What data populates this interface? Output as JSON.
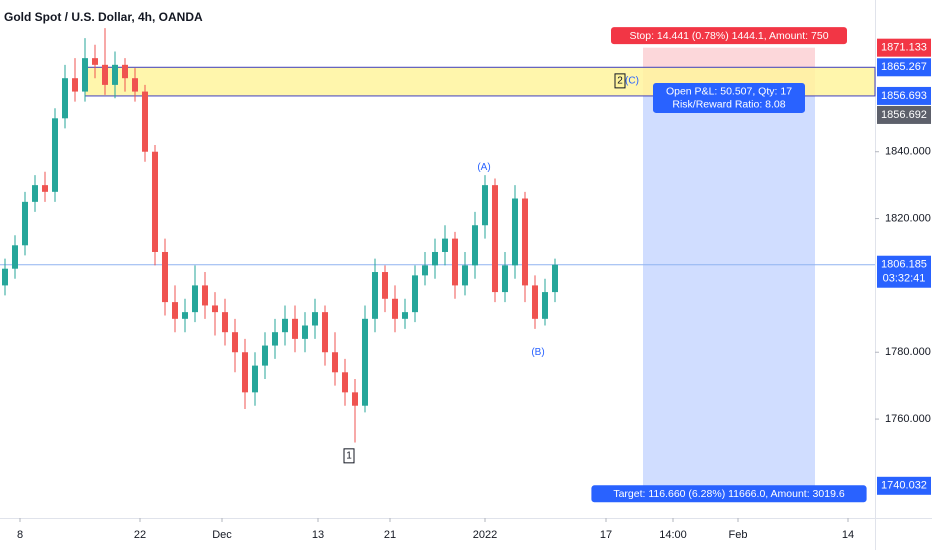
{
  "chart_data": {
    "type": "candlestick",
    "title": "Gold Spot / U.S. Dollar, 4h, OANDA",
    "x": [
      0,
      1,
      2,
      3,
      4,
      5,
      6,
      7,
      8,
      9,
      10,
      11,
      12,
      13,
      14,
      15,
      16,
      17,
      18,
      19,
      20,
      21,
      22,
      23,
      24,
      25,
      26,
      27,
      28,
      29,
      30,
      31,
      32,
      33,
      34,
      35,
      36,
      37,
      38,
      39,
      40,
      41,
      42,
      43,
      44,
      45,
      46,
      47,
      48,
      49,
      50,
      51,
      52,
      53,
      54,
      55
    ],
    "open": [
      1800,
      1805,
      1812,
      1825,
      1830,
      1828,
      1850,
      1862,
      1858,
      1868,
      1866,
      1860,
      1866,
      1862,
      1858,
      1840,
      1810,
      1795,
      1790,
      1792,
      1800,
      1794,
      1792,
      1786,
      1780,
      1768,
      1776,
      1782,
      1786,
      1790,
      1784,
      1788,
      1792,
      1780,
      1774,
      1768,
      1764,
      1790,
      1804,
      1796,
      1790,
      1792,
      1803,
      1806,
      1810,
      1814,
      1800,
      1806,
      1818,
      1830,
      1798,
      1806,
      1826,
      1800,
      1790,
      1798
    ],
    "high": [
      1808,
      1815,
      1828,
      1833,
      1834,
      1853,
      1866,
      1868,
      1874,
      1872,
      1877,
      1870,
      1868,
      1865,
      1860,
      1842,
      1814,
      1800,
      1796,
      1806,
      1804,
      1798,
      1796,
      1790,
      1784,
      1780,
      1786,
      1790,
      1794,
      1794,
      1792,
      1796,
      1794,
      1786,
      1778,
      1772,
      1794,
      1808,
      1806,
      1800,
      1796,
      1806,
      1810,
      1814,
      1818,
      1816,
      1810,
      1822,
      1833,
      1832,
      1810,
      1830,
      1828,
      1803,
      1802,
      1808
    ],
    "low": [
      1797,
      1802,
      1809,
      1822,
      1825,
      1825,
      1847,
      1855,
      1855,
      1862,
      1857,
      1856,
      1858,
      1855,
      1837,
      1806,
      1791,
      1786,
      1786,
      1789,
      1790,
      1785,
      1782,
      1774,
      1763,
      1764,
      1772,
      1778,
      1782,
      1780,
      1780,
      1784,
      1776,
      1770,
      1764,
      1753,
      1762,
      1786,
      1792,
      1786,
      1787,
      1789,
      1800,
      1802,
      1806,
      1796,
      1797,
      1802,
      1814,
      1795,
      1795,
      1802,
      1795,
      1787,
      1788,
      1795
    ],
    "close": [
      1805,
      1812,
      1825,
      1830,
      1828,
      1850,
      1862,
      1858,
      1868,
      1866,
      1860,
      1866,
      1862,
      1858,
      1840,
      1810,
      1795,
      1790,
      1792,
      1800,
      1794,
      1792,
      1786,
      1780,
      1768,
      1776,
      1782,
      1786,
      1790,
      1784,
      1788,
      1792,
      1780,
      1774,
      1768,
      1764,
      1790,
      1804,
      1796,
      1790,
      1792,
      1803,
      1806,
      1810,
      1814,
      1800,
      1806,
      1818,
      1830,
      1798,
      1806,
      1826,
      1800,
      1790,
      1798,
      1806.185
    ],
    "up_color": "#26a69a",
    "down_color": "#ef5350",
    "xlim": [
      -0.5,
      87
    ],
    "ylim": [
      1730.4,
      1885.4
    ],
    "yticks": [
      {
        "value": 1760,
        "label": "1760.000"
      },
      {
        "value": 1780,
        "label": "1780.000"
      },
      {
        "value": 1820,
        "label": "1820.000"
      },
      {
        "value": 1840,
        "label": "1840.000"
      }
    ],
    "xticks": [
      {
        "value": 1.5,
        "label": "8"
      },
      {
        "value": 13.5,
        "label": "22"
      },
      {
        "value": 21.7,
        "label": "Dec"
      },
      {
        "value": 31.3,
        "label": "13"
      },
      {
        "value": 38.5,
        "label": "21"
      },
      {
        "value": 48,
        "label": "2022"
      },
      {
        "value": 60.1,
        "label": "17"
      },
      {
        "value": 66.8,
        "label": "14:00"
      },
      {
        "value": 73.3,
        "label": "Feb"
      },
      {
        "value": 84.3,
        "label": "14"
      }
    ],
    "current_price": {
      "value": 1806.185,
      "countdown": "03:32:41",
      "color": "#2962ff"
    },
    "zone": {
      "top": 1865.267,
      "bottom": 1856.693,
      "x_start": 8,
      "color": "#fff59d"
    },
    "position": {
      "entry": 1856.692,
      "stop": 1871.133,
      "target": 1740.032,
      "x_start": 63.8,
      "x_end": 81,
      "stop_label": "Stop: 14.441 (0.78%) 1444.1, Amount: 750",
      "pnl_label": "Open P&L: 50.507, Qty: 17",
      "rr_label": "Risk/Reward Ratio: 8.08",
      "target_label": "Target: 116.660 (6.28%) 11666.0, Amount: 3019.6"
    },
    "annotations": [
      {
        "text": "(A)",
        "x": 47.9,
        "y": 1835.3
      },
      {
        "text": "(B)",
        "x": 53.3,
        "y": 1780
      },
      {
        "text": "(C)",
        "x": 62.7,
        "y": 1861.2
      },
      {
        "text": "1",
        "x": 34.4,
        "y": 1749,
        "boxed": true
      },
      {
        "text": "2",
        "x": 61.5,
        "y": 1861.2,
        "boxed": true
      }
    ]
  }
}
